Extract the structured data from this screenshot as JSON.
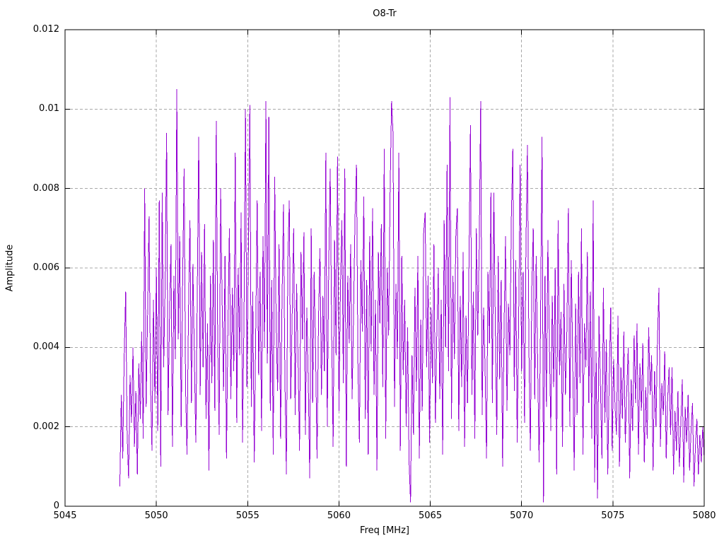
{
  "title": "O8-Tr",
  "xlabel": "Freq [MHz]",
  "ylabel": "Amplitude",
  "colors": {
    "line": "#9400d3",
    "grid": "#a9a9a9",
    "frame": "#000000",
    "background": "#ffffff",
    "text": "#000000"
  },
  "chart_data": {
    "type": "line",
    "title": "O8-Tr",
    "xlabel": "Freq [MHz]",
    "ylabel": "Amplitude",
    "xlim": [
      5045,
      5080
    ],
    "ylim": [
      0,
      0.012
    ],
    "x_ticks": [
      5045,
      5050,
      5055,
      5060,
      5065,
      5070,
      5075,
      5080
    ],
    "x_tick_labels": [
      "5045",
      "5050",
      "5055",
      "5060",
      "5065",
      "5070",
      "5075",
      "5080"
    ],
    "y_ticks": [
      0,
      0.002,
      0.004,
      0.006,
      0.008,
      0.01,
      0.012
    ],
    "y_tick_labels": [
      "0",
      "0.002",
      "0.004",
      "0.006",
      "0.008",
      "0.01",
      "0.012"
    ],
    "grid": true,
    "grid_style": "dashed",
    "legend_position": "none",
    "line_color": "#9400d3",
    "series": [
      {
        "name": "O8-Tr",
        "x_start": 5048.0,
        "x_step": 0.08,
        "value_scale": 0.0001,
        "values": [
          5,
          28,
          12,
          38,
          54,
          18,
          7,
          33,
          21,
          40,
          15,
          29,
          8,
          36,
          22,
          44,
          17,
          80,
          25,
          48,
          73,
          31,
          14,
          52,
          26,
          60,
          19,
          77,
          10,
          79,
          35,
          55,
          94,
          23,
          47,
          66,
          15,
          58,
          37,
          105,
          42,
          68,
          20,
          57,
          85,
          30,
          13,
          49,
          72,
          26,
          61,
          38,
          16,
          53,
          93,
          28,
          64,
          35,
          71,
          22,
          46,
          9,
          58,
          31,
          67,
          24,
          97,
          41,
          18,
          80,
          52,
          29,
          63,
          12,
          45,
          70,
          27,
          55,
          34,
          89,
          21,
          60,
          38,
          74,
          16,
          48,
          100,
          30,
          65,
          101,
          25,
          54,
          11,
          43,
          77,
          33,
          59,
          19,
          68,
          40,
          102,
          36,
          98,
          24,
          57,
          13,
          83,
          45,
          29,
          66,
          17,
          51,
          76,
          32,
          8,
          62,
          77,
          27,
          49,
          70,
          23,
          56,
          37,
          14,
          64,
          42,
          69,
          18,
          50,
          31,
          7,
          70,
          26,
          59,
          39,
          12,
          47,
          65,
          28,
          53,
          34,
          89,
          20,
          61,
          85,
          44,
          15,
          67,
          38,
          88,
          24,
          55,
          72,
          31,
          85,
          10,
          58,
          41,
          66,
          27,
          49,
          73,
          86,
          35,
          16,
          62,
          44,
          78,
          22,
          57,
          13,
          68,
          39,
          75,
          28,
          52,
          9,
          64,
          46,
          71,
          30,
          90,
          17,
          60,
          43,
          79,
          102,
          94,
          25,
          56,
          37,
          89,
          14,
          63,
          33,
          52,
          20,
          45,
          11,
          1,
          38,
          18,
          55,
          29,
          63,
          12,
          47,
          24,
          69,
          74,
          35,
          58,
          16,
          50,
          31,
          66,
          21,
          44,
          60,
          27,
          52,
          13,
          72,
          40,
          86,
          34,
          103,
          22,
          58,
          37,
          68,
          75,
          19,
          53,
          30,
          64,
          15,
          48,
          26,
          61,
          96,
          28,
          54,
          17,
          70,
          43,
          65,
          102,
          23,
          50,
          35,
          12,
          59,
          41,
          79,
          26,
          79,
          46,
          18,
          63,
          32,
          57,
          10,
          45,
          68,
          24,
          51,
          38,
          73,
          90,
          29,
          62,
          16,
          47,
          86,
          34,
          59,
          21,
          66,
          91,
          40,
          14,
          55,
          70,
          27,
          63,
          36,
          11,
          48,
          93,
          1,
          58,
          25,
          67,
          42,
          19,
          53,
          30,
          60,
          8,
          72,
          33,
          49,
          15,
          56,
          28,
          44,
          75,
          20,
          62,
          37,
          9,
          51,
          23,
          59,
          31,
          70,
          13,
          46,
          35,
          64,
          26,
          54,
          17,
          77,
          6,
          39,
          2,
          48,
          30,
          12,
          55,
          21,
          42,
          8,
          33,
          50,
          14,
          37,
          25,
          18,
          48,
          10,
          35,
          22,
          44,
          16,
          29,
          40,
          7,
          32,
          19,
          43,
          26,
          46,
          13,
          36,
          24,
          41,
          11,
          30,
          17,
          45,
          28,
          38,
          9,
          34,
          20,
          42,
          55,
          15,
          31,
          23,
          39,
          12,
          27,
          35,
          18,
          35,
          8,
          24,
          14,
          29,
          10,
          21,
          32,
          6,
          25,
          16,
          28,
          9,
          19,
          26,
          5,
          15,
          22,
          8,
          18,
          11,
          20,
          12
        ]
      }
    ]
  }
}
